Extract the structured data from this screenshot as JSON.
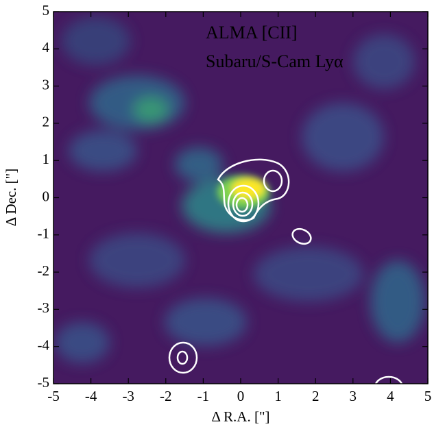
{
  "chart_data": {
    "type": "image",
    "labels": [
      "ALMA [CII]",
      "Subaru/S-Cam Lyα"
    ],
    "label_colors": [
      "#ffffff",
      "#f4ee3c"
    ],
    "xlabel": "Δ R.A. [\"]",
    "ylabel": "Δ Dec. [\"]",
    "xlim": [
      -5,
      5
    ],
    "ylim": [
      -5,
      5
    ],
    "xticks": [
      -5,
      -4,
      -3,
      -2,
      -1,
      0,
      1,
      2,
      3,
      4,
      5
    ],
    "yticks": [
      -5,
      -4,
      -3,
      -2,
      -1,
      0,
      1,
      2,
      3,
      4,
      5
    ]
  }
}
